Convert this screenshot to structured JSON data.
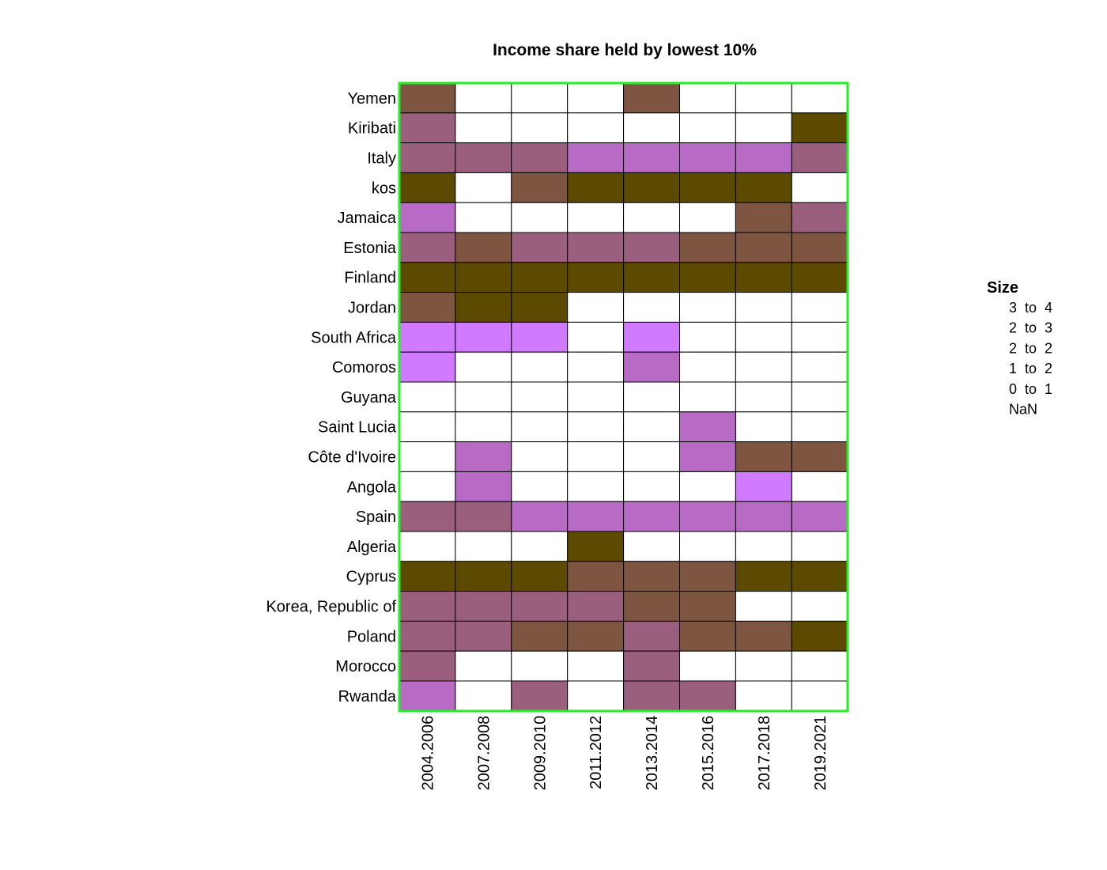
{
  "chart_data": {
    "type": "heatmap",
    "title": "Income share held by lowest 10%",
    "xlabel": "",
    "ylabel": "",
    "columns": [
      "2004.2006",
      "2007.2008",
      "2009.2010",
      "2011.2012",
      "2013.2014",
      "2015.2016",
      "2017.2018",
      "2019.2021"
    ],
    "rows": [
      "Yemen",
      "Kiribati",
      "Italy",
      "kos",
      "Jamaica",
      "Estonia",
      "Finland",
      "Jordan",
      "South Africa",
      "Comoros",
      "Guyana",
      "Saint Lucia",
      "Côte d'Ivoire",
      "Angola",
      "Spain",
      "Algeria",
      "Cyprus",
      "Korea, Republic of",
      "Poland",
      "Morocco",
      "Rwanda"
    ],
    "cells": [
      [
        3,
        null,
        null,
        null,
        3,
        null,
        null,
        null
      ],
      [
        2,
        null,
        null,
        null,
        null,
        null,
        null,
        4
      ],
      [
        2,
        2,
        2,
        1,
        1,
        1,
        1,
        2
      ],
      [
        4,
        null,
        3,
        4,
        4,
        4,
        4,
        null
      ],
      [
        1,
        null,
        null,
        null,
        null,
        null,
        3,
        2
      ],
      [
        2,
        3,
        2,
        2,
        2,
        3,
        3,
        3
      ],
      [
        4,
        4,
        4,
        4,
        4,
        4,
        4,
        4
      ],
      [
        3,
        4,
        4,
        null,
        null,
        null,
        null,
        null
      ],
      [
        0,
        0,
        0,
        null,
        0,
        null,
        null,
        null
      ],
      [
        0,
        null,
        null,
        null,
        1,
        null,
        null,
        null
      ],
      [
        null,
        null,
        null,
        null,
        null,
        null,
        null,
        null
      ],
      [
        null,
        null,
        null,
        null,
        null,
        1,
        null,
        null
      ],
      [
        null,
        1,
        null,
        null,
        null,
        1,
        3,
        3
      ],
      [
        null,
        1,
        null,
        null,
        null,
        null,
        0,
        null
      ],
      [
        2,
        2,
        1,
        1,
        1,
        1,
        1,
        1
      ],
      [
        null,
        null,
        null,
        4,
        null,
        null,
        null,
        null
      ],
      [
        4,
        4,
        4,
        3,
        3,
        3,
        4,
        4
      ],
      [
        2,
        2,
        2,
        2,
        3,
        3,
        null,
        null
      ],
      [
        2,
        2,
        3,
        3,
        2,
        3,
        3,
        4
      ],
      [
        2,
        null,
        null,
        null,
        2,
        null,
        null,
        null
      ],
      [
        1,
        null,
        2,
        null,
        2,
        2,
        null,
        null
      ]
    ],
    "legend": {
      "title": "Size",
      "position": "right",
      "entries": [
        {
          "label": "3  to  4",
          "color": "#5c4a00"
        },
        {
          "label": "2  to  3",
          "color": "#7d5540"
        },
        {
          "label": "2  to  2",
          "color": "#9b5f7e"
        },
        {
          "label": "1  to  2",
          "color": "#b86bc4"
        },
        {
          "label": "0  to  1",
          "color": "#d07aff"
        },
        {
          "label": "NaN",
          "color": "#ffffff"
        }
      ]
    },
    "colors": {
      "panel_border": "#22ee22",
      "cell_border": "#000000",
      "missing": "#ffffff"
    }
  }
}
